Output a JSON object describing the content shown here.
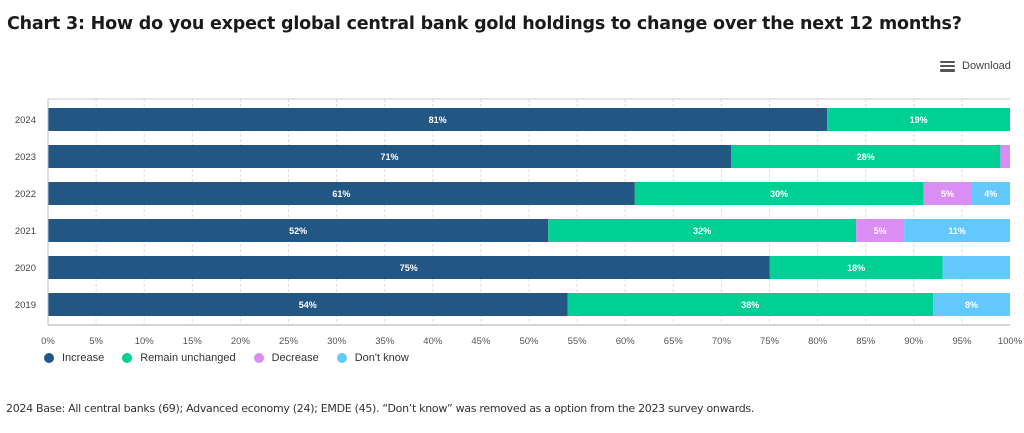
{
  "header": {
    "title": "Chart 3: How do you expect global central bank gold holdings to change over the next 12 months?"
  },
  "toolbar": {
    "download_label": "Download",
    "download_icon": "hamburger-menu-icon"
  },
  "footnote": "2024 Base: All central banks (69); Advanced economy (24); EMDE (45). “Don’t know” was removed as a option from the 2023 survey onwards.",
  "chart_data": {
    "type": "bar",
    "orientation": "horizontal",
    "stacked": "percent",
    "title": "Chart 3: How do you expect global central bank gold holdings to change over the next 12 months?",
    "xlabel": "",
    "ylabel": "",
    "xlim": [
      0,
      100
    ],
    "x_ticks": [
      "0%",
      "5%",
      "10%",
      "15%",
      "20%",
      "25%",
      "30%",
      "35%",
      "40%",
      "45%",
      "50%",
      "55%",
      "60%",
      "65%",
      "70%",
      "75%",
      "80%",
      "85%",
      "90%",
      "95%",
      "100%"
    ],
    "grid": true,
    "legend_position": "bottom-left",
    "categories": [
      "2024",
      "2023",
      "2022",
      "2021",
      "2020",
      "2019"
    ],
    "series": [
      {
        "name": "Increase",
        "color": "#235783",
        "values": [
          81,
          71,
          61,
          52,
          75,
          54
        ],
        "labels": [
          "81%",
          "71%",
          "61%",
          "52%",
          "75%",
          "54%"
        ]
      },
      {
        "name": "Remain unchanged",
        "color": "#00d096",
        "values": [
          19,
          28,
          30,
          32,
          18,
          38
        ],
        "labels": [
          "19%",
          "28%",
          "30%",
          "32%",
          "18%",
          "38%"
        ]
      },
      {
        "name": "Decrease",
        "color": "#da8ef4",
        "values": [
          0,
          1,
          5,
          5,
          0,
          0
        ],
        "labels": [
          "",
          "",
          "5%",
          "5%",
          "",
          ""
        ]
      },
      {
        "name": "Don't know",
        "color": "#62c8fd",
        "values": [
          0,
          0,
          4,
          11,
          7,
          8
        ],
        "labels": [
          "",
          "",
          "4%",
          "11%",
          "",
          "8%"
        ]
      }
    ]
  }
}
